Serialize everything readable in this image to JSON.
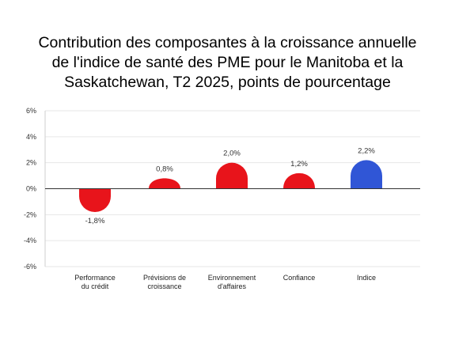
{
  "chart_data": {
    "type": "bar",
    "title_lines": [
      "Contribution des composantes à la croissance annuelle",
      "de l'indice de santé des PME pour le Manitoba et la",
      "Saskatchewan, T2 2025, points de pourcentage"
    ],
    "categories": [
      [
        "Performance",
        "du crédit"
      ],
      [
        "Prévisions de",
        "croissance"
      ],
      [
        "Environnement",
        "d'affaires"
      ],
      [
        "Confiance"
      ],
      [
        "Indice"
      ]
    ],
    "values": [
      -1.8,
      0.8,
      2.0,
      1.2,
      2.2
    ],
    "data_labels": [
      "-1,8%",
      "0,8%",
      "2,0%",
      "1,2%",
      "2,2%"
    ],
    "colors": [
      "#e8141b",
      "#e8141b",
      "#e8141b",
      "#e8141b",
      "#3056d6"
    ],
    "y_ticks": [
      6,
      4,
      2,
      0,
      -2,
      -4,
      -6
    ],
    "y_tick_labels": [
      "6%",
      "4%",
      "2%",
      "0%",
      "-2%",
      "-4%",
      "-6%"
    ],
    "ylim": [
      -6,
      6
    ],
    "xlabel": "",
    "ylabel": "",
    "grid": true
  }
}
